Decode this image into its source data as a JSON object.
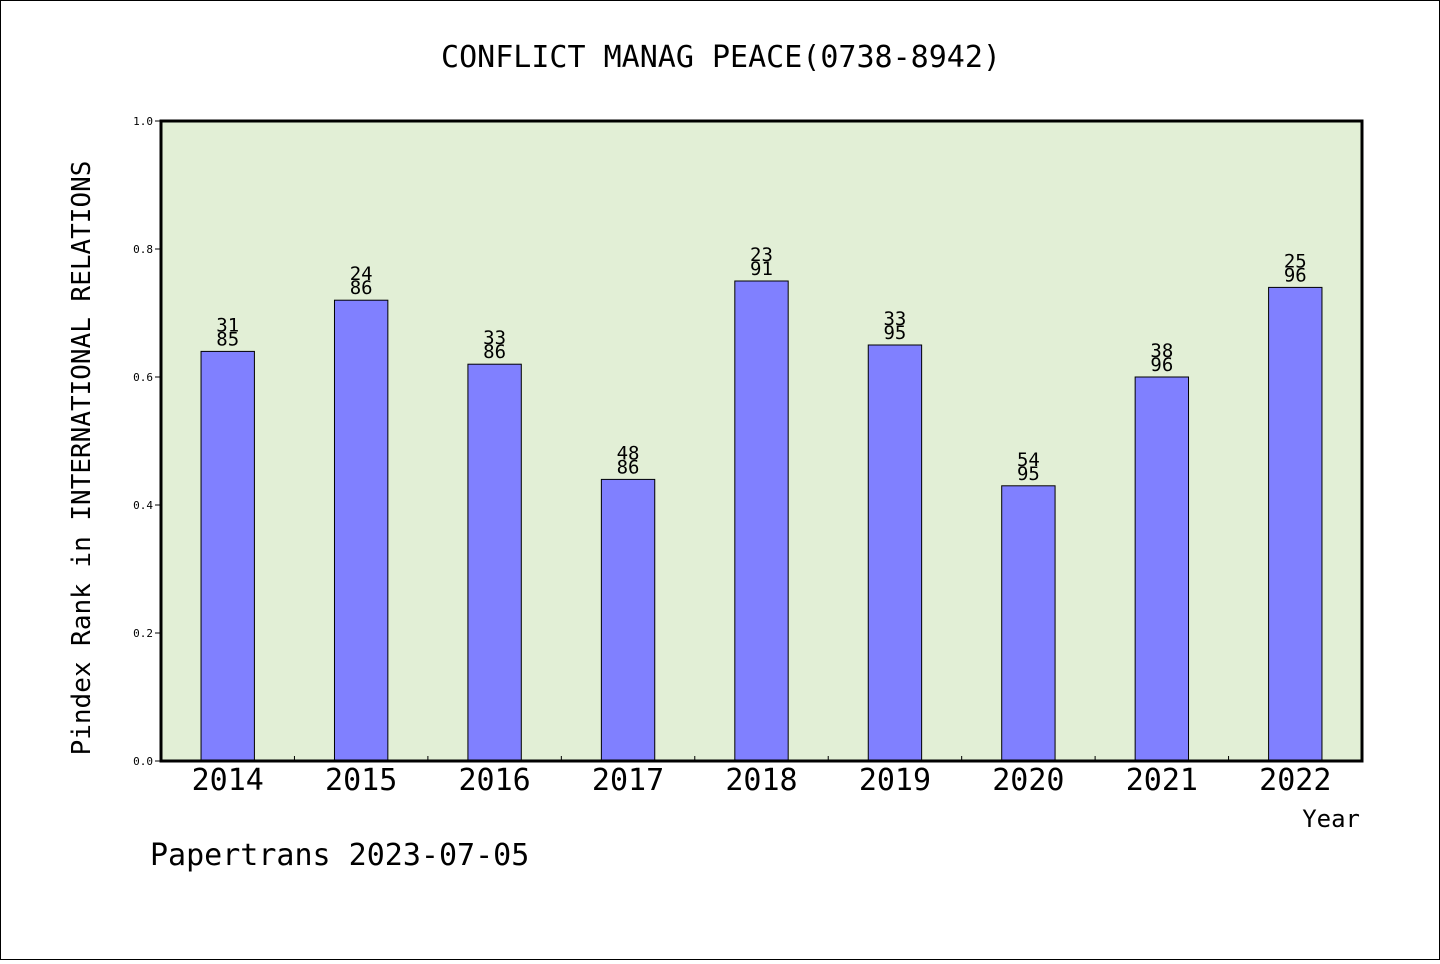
{
  "chart_data": {
    "type": "bar",
    "title": "CONFLICT MANAG PEACE(0738-8942)",
    "xlabel": "Year",
    "ylabel": "Pindex Rank in INTERNATIONAL RELATIONS",
    "categories": [
      "2014",
      "2015",
      "2016",
      "2017",
      "2018",
      "2019",
      "2020",
      "2021",
      "2022"
    ],
    "values": [
      0.64,
      0.72,
      0.62,
      0.44,
      0.75,
      0.65,
      0.43,
      0.6,
      0.74
    ],
    "bar_labels": [
      [
        "31",
        "85"
      ],
      [
        "24",
        "86"
      ],
      [
        "33",
        "86"
      ],
      [
        "48",
        "86"
      ],
      [
        "23",
        "91"
      ],
      [
        "33",
        "95"
      ],
      [
        "54",
        "95"
      ],
      [
        "38",
        "96"
      ],
      [
        "25",
        "96"
      ]
    ],
    "ylim": [
      0.0,
      1.0
    ],
    "yticks": [
      "0.0",
      "0.2",
      "0.4",
      "0.6",
      "0.8",
      "1.0"
    ],
    "grid": false,
    "legend": "none",
    "colors": {
      "bar_fill": "#8080ff",
      "plot_background": "#e2efd6",
      "axis": "#000000"
    }
  },
  "footer": {
    "text": "Papertrans 2023-07-05"
  }
}
